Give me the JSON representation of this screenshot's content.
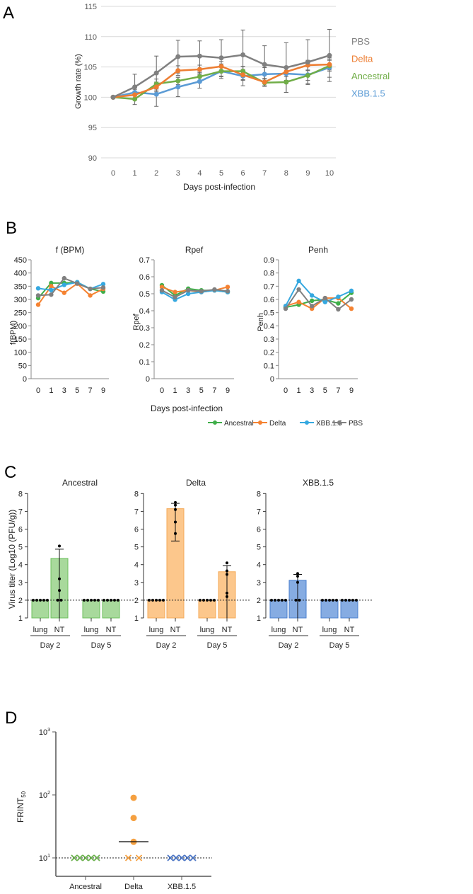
{
  "panel_letters": {
    "A": "A",
    "B": "B",
    "C": "C",
    "D": "D"
  },
  "colors": {
    "A": {
      "PBS": "#808080",
      "Delta": "#ed7d31",
      "Ancestral": "#70ad47",
      "XBB.1.5": "#5b9bd5"
    },
    "B": {
      "Ancestral": "#3fae49",
      "Delta": "#f58231",
      "XBB.1.5": "#35a8e0",
      "PBS": "#808080"
    },
    "C": {
      "Ancestral": {
        "fill": "#a8d99c",
        "stroke": "#6cbf5c"
      },
      "Delta": {
        "fill": "#fcc78c",
        "stroke": "#f5a957"
      },
      "XBB.1.5": {
        "fill": "#86ace2",
        "stroke": "#4a7fcf"
      }
    },
    "D": {
      "Ancestral": "#6ab04c",
      "Delta": "#f5a040",
      "XBB.1.5": "#4a74c4"
    }
  },
  "chart_data": [
    {
      "panel": "A",
      "type": "line",
      "xlabel": "Days post-infection",
      "ylabel": "Growth rate (%)",
      "x": [
        0,
        1,
        2,
        3,
        4,
        5,
        6,
        7,
        8,
        9,
        10
      ],
      "ylim": [
        90,
        115
      ],
      "yticks": [
        90,
        95,
        100,
        105,
        110,
        115
      ],
      "grid": true,
      "legend": "right",
      "series": [
        {
          "name": "PBS",
          "values": [
            100,
            101.7,
            104,
            106.7,
            106.8,
            106.5,
            107,
            105.4,
            104.9,
            105.8,
            106.9
          ],
          "error": [
            0,
            2.1,
            2.8,
            2.7,
            2.5,
            3,
            4.1,
            3.1,
            4.1,
            3.7,
            4.3
          ]
        },
        {
          "name": "Delta",
          "values": [
            100,
            100.4,
            101.7,
            104.4,
            104.6,
            105.1,
            103.7,
            102.5,
            104.2,
            105.3,
            105.4
          ],
          "error": [
            0,
            0.6,
            0.8,
            0.8,
            0.7,
            0.8,
            0.9,
            0.6,
            0.8,
            0.8,
            0.9
          ]
        },
        {
          "name": "Ancestral",
          "values": [
            100,
            99.7,
            102.2,
            102.7,
            103.4,
            104.3,
            104.3,
            102.4,
            102.5,
            103.6,
            105.2
          ],
          "error": [
            0,
            0.9,
            0.8,
            0.6,
            0.7,
            0.9,
            0.8,
            0.6,
            1.7,
            0.8,
            0.9
          ]
        },
        {
          "name": "XBB.1.5",
          "values": [
            100,
            100.8,
            100.5,
            101.7,
            102.6,
            104.3,
            103.5,
            103.8,
            103.9,
            103.7,
            104.9
          ],
          "error": [
            0,
            0.5,
            2,
            1.6,
            1.1,
            1.2,
            1.6,
            1.1,
            1.1,
            1.4,
            1.6
          ]
        }
      ]
    },
    {
      "panel": "B",
      "type": "line",
      "xlabel": "Days post-infection",
      "legend_items": [
        "Ancestral",
        "Delta",
        "XBB.1.5",
        "PBS"
      ],
      "legend": "bottom-right",
      "subplots": [
        {
          "title": "f (BPM)",
          "ylabel": "f(BPM)",
          "x": [
            0,
            1,
            3,
            5,
            7,
            9
          ],
          "ylim": [
            0,
            450
          ],
          "yticks": [
            0,
            50,
            100,
            150,
            200,
            250,
            300,
            350,
            400,
            450
          ],
          "series": [
            {
              "name": "Ancestral",
              "values": [
                305,
                362,
                362,
                365,
                340,
                330
              ]
            },
            {
              "name": "Delta",
              "values": [
                280,
                350,
                325,
                360,
                315,
                340
              ]
            },
            {
              "name": "XBB.1.5",
              "values": [
                342,
                335,
                355,
                365,
                340,
                358
              ]
            },
            {
              "name": "PBS",
              "values": [
                315,
                318,
                380,
                360,
                340,
                345
              ]
            }
          ]
        },
        {
          "title": "Rpef",
          "ylabel": "Rpef",
          "x": [
            0,
            1,
            3,
            5,
            7,
            9
          ],
          "ylim": [
            0,
            0.7
          ],
          "yticks": [
            0,
            0.1,
            0.2,
            0.3,
            0.4,
            0.5,
            0.6,
            0.7
          ],
          "series": [
            {
              "name": "Ancestral",
              "values": [
                0.55,
                0.49,
                0.53,
                0.52,
                0.52,
                0.51
              ]
            },
            {
              "name": "Delta",
              "values": [
                0.54,
                0.51,
                0.52,
                0.51,
                0.52,
                0.54
              ]
            },
            {
              "name": "XBB.1.5",
              "values": [
                0.51,
                0.465,
                0.5,
                0.51,
                0.52,
                0.51
              ]
            },
            {
              "name": "PBS",
              "values": [
                0.52,
                0.48,
                0.52,
                0.515,
                0.525,
                0.515
              ]
            }
          ]
        },
        {
          "title": "Penh",
          "ylabel": "Penh",
          "x": [
            0,
            1,
            3,
            5,
            7,
            9
          ],
          "ylim": [
            0,
            0.9
          ],
          "yticks": [
            0,
            0.1,
            0.2,
            0.3,
            0.4,
            0.5,
            0.6,
            0.7,
            0.8,
            0.9
          ],
          "series": [
            {
              "name": "Ancestral",
              "values": [
                0.54,
                0.56,
                0.59,
                0.6,
                0.57,
                0.65
              ]
            },
            {
              "name": "Delta",
              "values": [
                0.55,
                0.58,
                0.53,
                0.61,
                0.61,
                0.53
              ]
            },
            {
              "name": "XBB.1.5",
              "values": [
                0.55,
                0.74,
                0.63,
                0.58,
                0.62,
                0.665
              ]
            },
            {
              "name": "PBS",
              "values": [
                0.53,
                0.675,
                0.55,
                0.61,
                0.525,
                0.6
              ]
            }
          ]
        }
      ]
    },
    {
      "panel": "C",
      "type": "bar",
      "ylabel": "Virus titer (Log10 (PFU/g))",
      "ylim": [
        1,
        8
      ],
      "yticks": [
        1,
        2,
        3,
        4,
        5,
        6,
        7,
        8
      ],
      "detection_limit": 2,
      "categories": [
        "lung",
        "NT",
        "lung",
        "NT"
      ],
      "groups": [
        "Day 2",
        "Day 5"
      ],
      "subplots": [
        {
          "title": "Ancestral",
          "bars": [
            {
              "value": 2,
              "points": [
                2,
                2,
                2,
                2,
                2
              ]
            },
            {
              "value": 4.35,
              "err_high": 4.87,
              "err_low": 1,
              "points": [
                5.05,
                3.2,
                2.55,
                2,
                2
              ]
            },
            {
              "value": 2,
              "points": [
                2,
                2,
                2,
                2,
                2
              ]
            },
            {
              "value": 2,
              "points": [
                2,
                2,
                2,
                2,
                2
              ]
            }
          ]
        },
        {
          "title": "Delta",
          "bars": [
            {
              "value": 2,
              "points": [
                2,
                2,
                2,
                2,
                2
              ]
            },
            {
              "value": 7.15,
              "err_high": 7.45,
              "err_low": 5.33,
              "points": [
                7.5,
                7.35,
                7.1,
                6.4,
                5.75
              ]
            },
            {
              "value": 2,
              "points": [
                2,
                2,
                2,
                2,
                2
              ]
            },
            {
              "value": 3.6,
              "err_high": 3.95,
              "err_low": 1,
              "points": [
                4.1,
                3.65,
                3.45,
                2.4,
                2.2
              ]
            }
          ]
        },
        {
          "title": "XBB.1.5",
          "bars": [
            {
              "value": 2,
              "points": [
                2,
                2,
                2,
                2,
                2
              ]
            },
            {
              "value": 3.12,
              "err_high": 3.45,
              "err_low": 1,
              "points": [
                3.5,
                3.35,
                3.0,
                2,
                2
              ]
            },
            {
              "value": 2,
              "points": [
                2,
                2,
                2,
                2,
                2
              ]
            },
            {
              "value": 2,
              "points": [
                2,
                2,
                2,
                2,
                2
              ]
            }
          ]
        }
      ]
    },
    {
      "panel": "D",
      "type": "scatter",
      "ylabel": "FRINT50",
      "yscale": "log",
      "yticks": [
        "10^1",
        "10^2",
        "10^3"
      ],
      "detection_limit": 10,
      "categories": [
        "Ancestral",
        "Delta",
        "XBB.1.5"
      ],
      "groups": [
        {
          "name": "Ancestral",
          "detected": [],
          "below_limit": 5
        },
        {
          "name": "Delta",
          "detected": [
            90,
            43,
            18
          ],
          "below_limit": 2,
          "median": 18
        },
        {
          "name": "XBB.1.5",
          "detected": [],
          "below_limit": 5
        }
      ]
    }
  ]
}
